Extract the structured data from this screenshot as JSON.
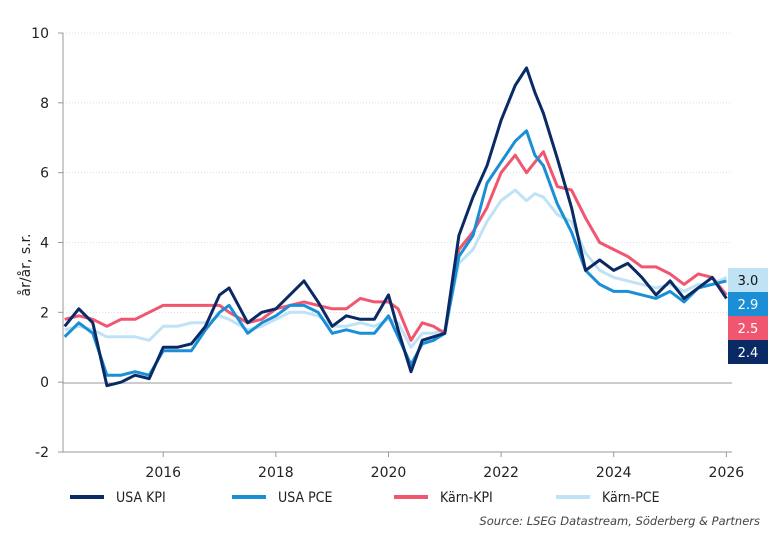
{
  "chart_data": {
    "type": "line",
    "ylabel": "år/år, s.r.",
    "ylim": [
      -2,
      10
    ],
    "yticks": [
      "-2",
      "0",
      "2",
      "4",
      "6",
      "8",
      "10"
    ],
    "xlim": [
      2014.22,
      2026.1
    ],
    "xticks": [
      "2016",
      "2018",
      "2020",
      "2022",
      "2024",
      "2026"
    ],
    "grid": "horizontal dotted",
    "legend": "bottom",
    "source": "Source: LSEG Datastream, Söderberg & Partners",
    "x": [
      2014.25,
      2014.5,
      2014.75,
      2015,
      2015.25,
      2015.5,
      2015.75,
      2016,
      2016.25,
      2016.5,
      2016.75,
      2017,
      2017.17,
      2017.5,
      2017.75,
      2018,
      2018.25,
      2018.5,
      2018.75,
      2019,
      2019.25,
      2019.5,
      2019.75,
      2020,
      2020.17,
      2020.4,
      2020.6,
      2020.8,
      2021,
      2021.25,
      2021.5,
      2021.75,
      2022,
      2022.25,
      2022.45,
      2022.6,
      2022.75,
      2023,
      2023.25,
      2023.5,
      2023.75,
      2024,
      2024.25,
      2024.5,
      2024.75,
      2025,
      2025.25,
      2025.5,
      2025.75,
      2026
    ],
    "series": [
      {
        "name": "USA KPI",
        "color": "#0a2a66",
        "end_label": "2.4",
        "values": [
          1.6,
          2.1,
          1.7,
          -0.1,
          0.0,
          0.2,
          0.1,
          1.0,
          1.0,
          1.1,
          1.6,
          2.5,
          2.7,
          1.7,
          2.0,
          2.1,
          2.5,
          2.9,
          2.3,
          1.6,
          1.9,
          1.8,
          1.8,
          2.5,
          1.5,
          0.3,
          1.2,
          1.3,
          1.4,
          4.2,
          5.3,
          6.2,
          7.5,
          8.5,
          9.0,
          8.3,
          7.7,
          6.4,
          5.0,
          3.2,
          3.5,
          3.2,
          3.4,
          3.0,
          2.5,
          2.9,
          2.4,
          2.7,
          3.0,
          2.4
        ]
      },
      {
        "name": "USA PCE",
        "color": "#1a8fd6",
        "end_label": "2.9",
        "values": [
          1.3,
          1.7,
          1.4,
          0.2,
          0.2,
          0.3,
          0.2,
          0.9,
          0.9,
          0.9,
          1.5,
          2.0,
          2.2,
          1.4,
          1.7,
          1.9,
          2.2,
          2.2,
          2.0,
          1.4,
          1.5,
          1.4,
          1.4,
          1.9,
          1.3,
          0.5,
          1.1,
          1.2,
          1.4,
          3.6,
          4.2,
          5.7,
          6.3,
          6.9,
          7.2,
          6.5,
          6.2,
          5.1,
          4.3,
          3.2,
          2.8,
          2.6,
          2.6,
          2.5,
          2.4,
          2.6,
          2.3,
          2.7,
          2.8,
          2.9
        ]
      },
      {
        "name": "Kärn-KPI",
        "color": "#f0566f",
        "end_label": "2.5",
        "values": [
          1.8,
          1.9,
          1.8,
          1.6,
          1.8,
          1.8,
          2.0,
          2.2,
          2.2,
          2.2,
          2.2,
          2.2,
          2.0,
          1.7,
          1.8,
          2.1,
          2.2,
          2.3,
          2.2,
          2.1,
          2.1,
          2.4,
          2.3,
          2.3,
          2.1,
          1.2,
          1.7,
          1.6,
          1.4,
          3.8,
          4.3,
          5.0,
          6.0,
          6.5,
          6.0,
          6.3,
          6.6,
          5.6,
          5.5,
          4.7,
          4.0,
          3.8,
          3.6,
          3.3,
          3.3,
          3.1,
          2.8,
          3.1,
          3.0,
          2.5
        ]
      },
      {
        "name": "Kärn-PCE",
        "color": "#bfe3f5",
        "end_label": "3.0",
        "values": [
          1.5,
          1.6,
          1.5,
          1.3,
          1.3,
          1.3,
          1.2,
          1.6,
          1.6,
          1.7,
          1.7,
          1.9,
          1.8,
          1.5,
          1.6,
          1.8,
          2.0,
          2.0,
          1.9,
          1.6,
          1.6,
          1.7,
          1.6,
          1.8,
          1.7,
          1.0,
          1.4,
          1.4,
          1.5,
          3.4,
          3.8,
          4.6,
          5.2,
          5.5,
          5.2,
          5.4,
          5.3,
          4.8,
          4.6,
          3.7,
          3.2,
          3.0,
          2.9,
          2.8,
          2.7,
          2.8,
          2.6,
          2.8,
          2.8,
          3.0
        ]
      }
    ]
  }
}
